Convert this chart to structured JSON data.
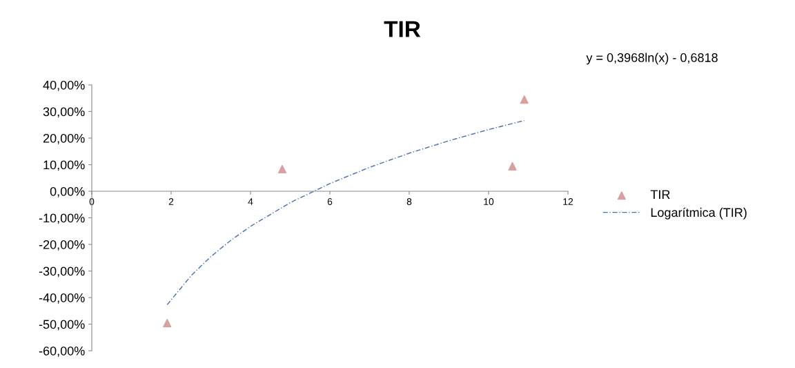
{
  "chart_data": {
    "type": "scatter",
    "title": "TIR",
    "annotations": [
      "y = 0,3968ln(x) - 0,6818"
    ],
    "series": [
      {
        "name": "TIR",
        "color": "#d8a0a0",
        "marker": "triangle",
        "x": [
          1.9,
          4.8,
          10.6,
          10.9
        ],
        "values": [
          -49.6,
          8.3,
          9.4,
          34.5
        ]
      },
      {
        "name": "Logarítmica (TIR)",
        "type": "line",
        "color": "#4a6fb0",
        "marker": "none",
        "line_style": "dashed",
        "x": [
          1.9,
          2.5,
          3,
          3.5,
          4,
          5,
          6,
          7,
          8,
          9,
          10,
          10.9
        ],
        "values": [
          -42.7,
          -31.8,
          -24.6,
          -18.5,
          -13.2,
          -4.3,
          2.9,
          9.0,
          14.3,
          19.0,
          23.2,
          26.6
        ]
      }
    ],
    "xlim": [
      0,
      12
    ],
    "xticks": [
      0,
      2,
      4,
      6,
      8,
      10,
      12
    ],
    "ylim": [
      -60,
      40
    ],
    "yticks": [
      {
        "value": -60,
        "label": "-60,00%"
      },
      {
        "value": -50,
        "label": "-50,00%"
      },
      {
        "value": -40,
        "label": "-40,00%"
      },
      {
        "value": -30,
        "label": "-30,00%"
      },
      {
        "value": -20,
        "label": "-20,00%"
      },
      {
        "value": -10,
        "label": "-10,00%"
      },
      {
        "value": 0,
        "label": "0,00%"
      },
      {
        "value": 10,
        "label": "10,00%"
      },
      {
        "value": 20,
        "label": "20,00%"
      },
      {
        "value": 30,
        "label": "30,00%"
      },
      {
        "value": 40,
        "label": "40,00%"
      }
    ],
    "grid": false,
    "legend": "right"
  }
}
